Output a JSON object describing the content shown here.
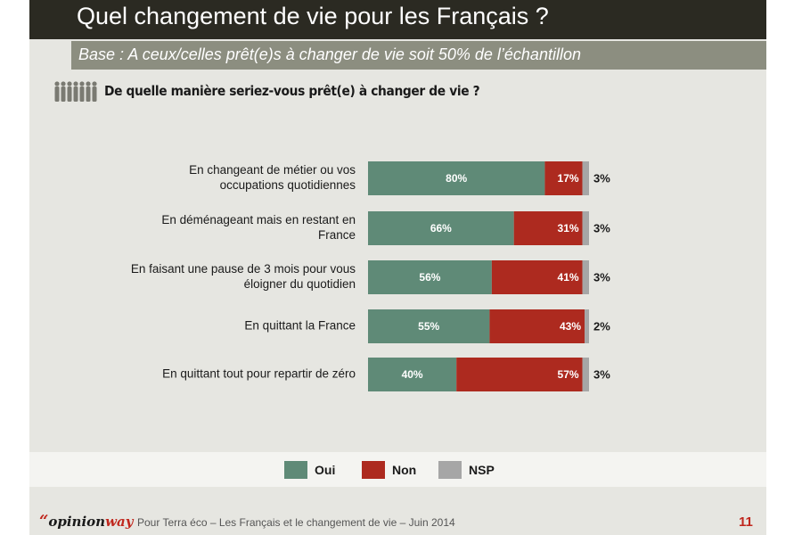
{
  "header": {
    "title": "Quel changement de vie pour les Français ?",
    "subtitle": "Base : A ceux/celles prêt(e)s à changer de vie soit 50% de l’échantillon"
  },
  "question": "De quelle manière seriez-vous prêt(e) à changer de vie ?",
  "chart_data": {
    "type": "bar",
    "orientation": "horizontal",
    "stacked": true,
    "title": "",
    "categories": [
      [
        "En changeant de métier ou vos",
        "occupations quotidiennes"
      ],
      [
        "En déménageant mais en restant en",
        "France"
      ],
      [
        "En faisant une pause de 3 mois pour vous",
        "éloigner du quotidien"
      ],
      [
        "En quittant la France"
      ],
      [
        "En quittant tout pour repartir de zéro"
      ]
    ],
    "series": [
      {
        "name": "Oui",
        "color": "#5f8a77",
        "values": [
          80,
          66,
          56,
          55,
          40
        ],
        "labels": [
          "80%",
          "66%",
          "56%",
          "55%",
          "40%"
        ]
      },
      {
        "name": "Non",
        "color": "#ad2a1f",
        "values": [
          17,
          31,
          41,
          43,
          57
        ],
        "labels": [
          "17%",
          "31%",
          "41%",
          "43%",
          "57%"
        ]
      },
      {
        "name": "NSP",
        "color": "#a6a6a6",
        "values": [
          3,
          3,
          3,
          2,
          3
        ],
        "labels": [
          "3%",
          "3%",
          "3%",
          "2%",
          "3%"
        ]
      }
    ],
    "xlim": [
      0,
      100
    ],
    "grid": false,
    "legend_position": "bottom"
  },
  "legend": [
    {
      "label": "Oui",
      "color": "#5f8a77"
    },
    {
      "label": "Non",
      "color": "#ad2a1f"
    },
    {
      "label": "NSP",
      "color": "#a6a6a6"
    }
  ],
  "footer": {
    "logo_quote": "“",
    "logo_opinion": "opinion",
    "logo_way": "way",
    "source": "Pour Terra éco – Les Français et le changement de vie – Juin 2014",
    "page_number": "11"
  }
}
